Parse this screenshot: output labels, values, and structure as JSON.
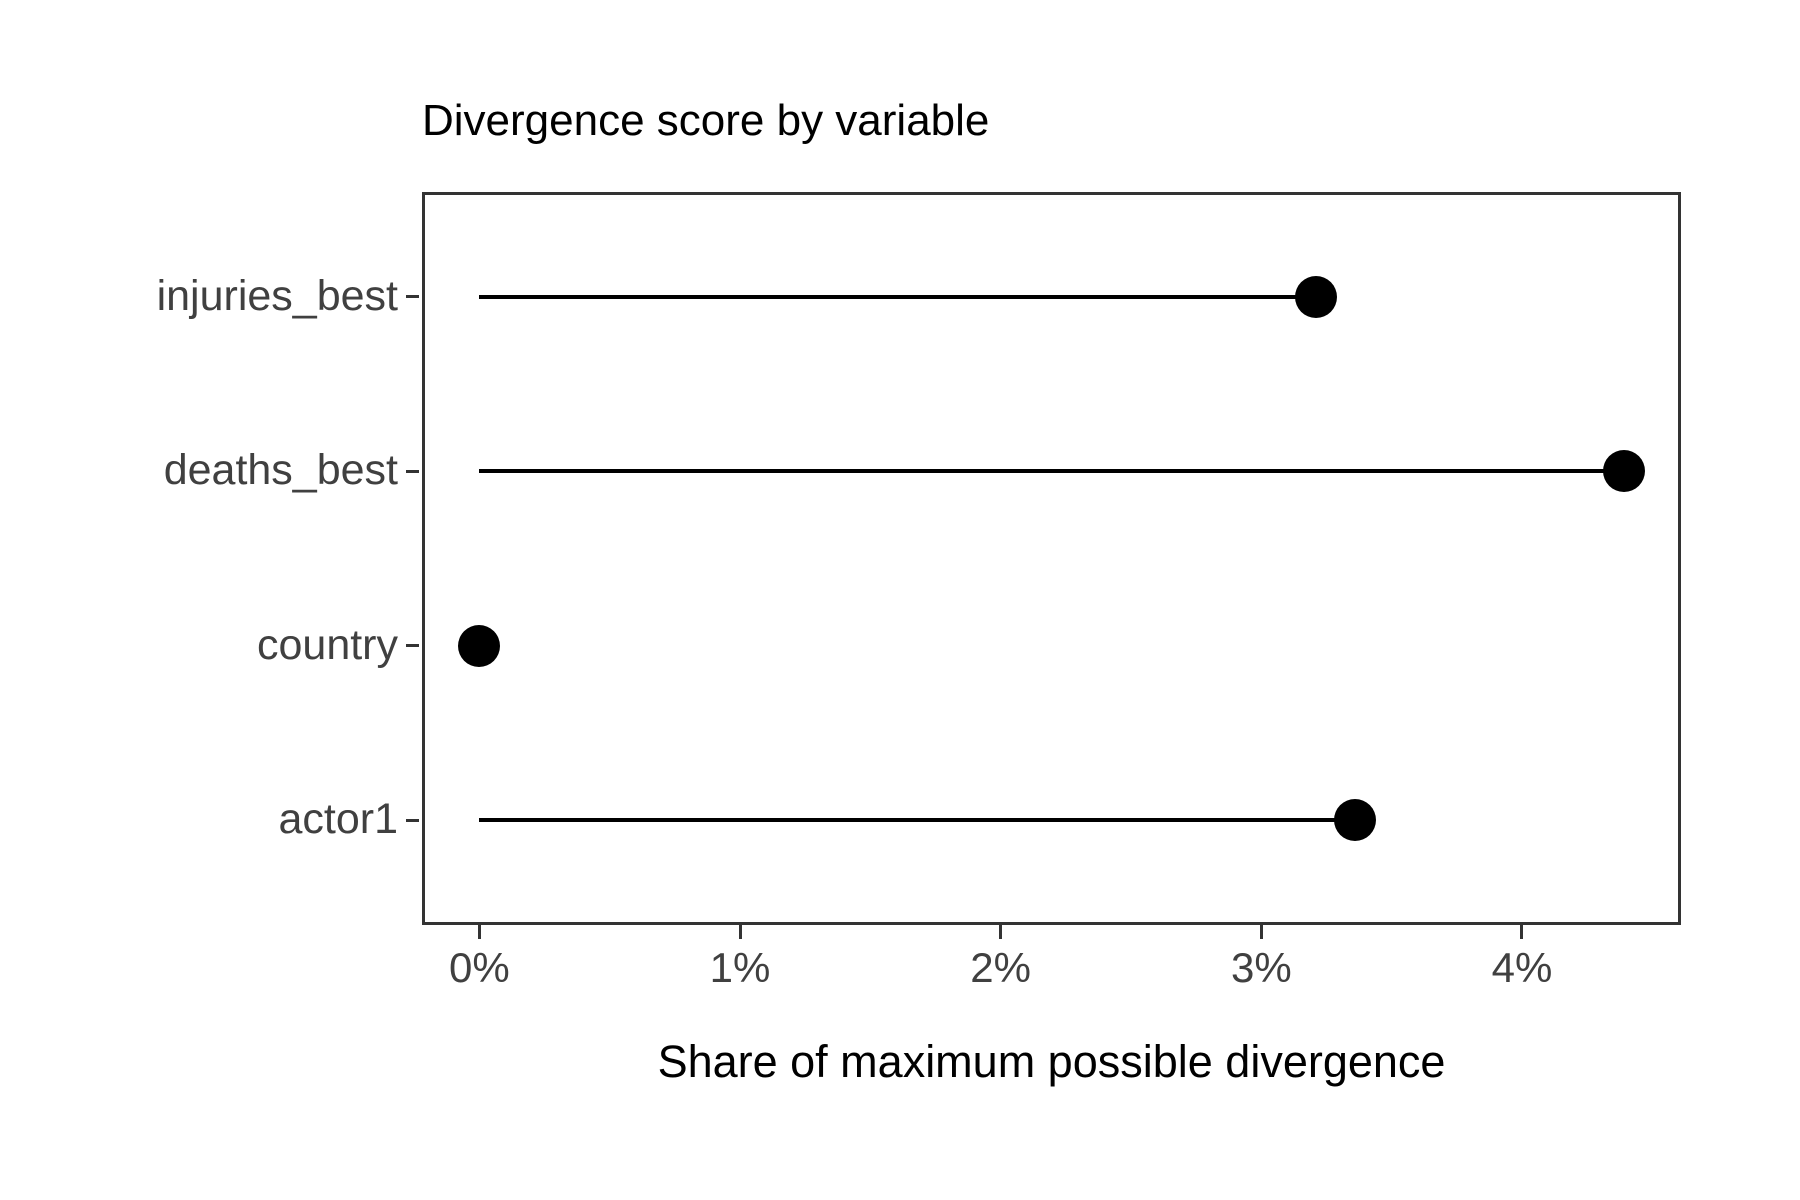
{
  "chart_data": {
    "type": "lollipop",
    "base_type": "scatter",
    "orientation": "horizontal",
    "title": "Divergence score by variable",
    "xlabel": "Share of maximum possible divergence",
    "ylabel": "",
    "categories": [
      "injuries_best",
      "deaths_best",
      "country",
      "actor1"
    ],
    "values_percent": [
      3.21,
      4.39,
      0,
      3.36
    ],
    "x_tick_values": [
      0,
      1,
      2,
      3,
      4
    ],
    "x_tick_labels": [
      "0%",
      "1%",
      "2%",
      "3%",
      "4%"
    ],
    "xlim_percent": [
      -0.22,
      4.61
    ],
    "grid": false,
    "legend_position": "none",
    "colors": {
      "marker": "#000000",
      "stem": "#000000",
      "panel_border": "#333333",
      "axis_text": "#404040",
      "title_text": "#000000",
      "background": "#ffffff"
    }
  }
}
